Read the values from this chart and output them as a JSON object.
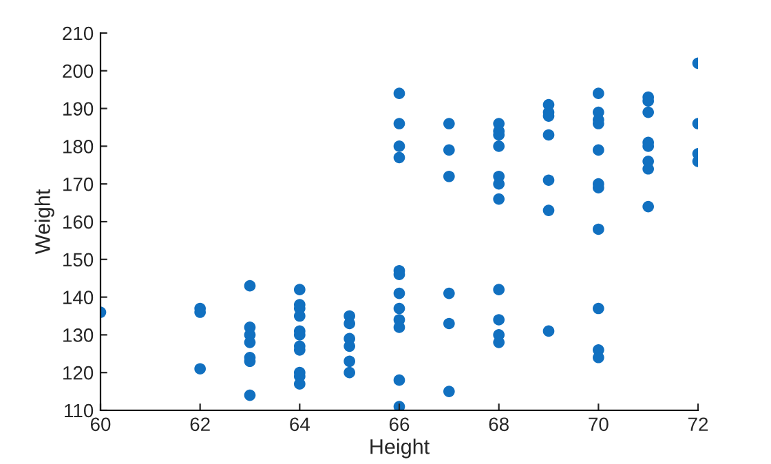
{
  "chart_data": {
    "type": "scatter",
    "xlabel": "Height",
    "ylabel": "Weight",
    "marker": "circle",
    "grid": false,
    "xlim": [
      60,
      72
    ],
    "xticks": [
      60,
      62,
      64,
      66,
      68,
      70,
      72
    ],
    "ylim": [
      110,
      210
    ],
    "yticks": [
      110,
      120,
      130,
      140,
      150,
      160,
      170,
      180,
      190,
      200,
      210
    ],
    "series": [
      {
        "color": "#1170c0",
        "x": [
          60,
          62,
          62,
          62,
          63,
          63,
          63,
          63,
          63,
          63,
          63,
          64,
          64,
          64,
          64,
          64,
          64,
          64,
          64,
          64,
          64,
          64,
          65,
          65,
          65,
          65,
          65,
          65,
          66,
          66,
          66,
          66,
          66,
          66,
          66,
          66,
          66,
          66,
          66,
          66,
          67,
          67,
          67,
          67,
          67,
          67,
          68,
          68,
          68,
          68,
          68,
          68,
          68,
          68,
          68,
          68,
          68,
          69,
          69,
          69,
          69,
          69,
          69,
          69,
          70,
          70,
          70,
          70,
          70,
          70,
          70,
          70,
          70,
          70,
          70,
          71,
          71,
          71,
          71,
          71,
          71,
          71,
          71,
          72,
          72,
          72,
          72
        ],
        "values": [
          136,
          137,
          136,
          121,
          143,
          132,
          130,
          128,
          124,
          123,
          114,
          142,
          138,
          137,
          135,
          131,
          130,
          127,
          126,
          120,
          119,
          117,
          135,
          133,
          129,
          127,
          123,
          120,
          194,
          186,
          180,
          177,
          147,
          146,
          141,
          137,
          134,
          132,
          118,
          111,
          186,
          179,
          172,
          141,
          133,
          115,
          186,
          184,
          183,
          180,
          172,
          170,
          166,
          142,
          134,
          130,
          128,
          191,
          189,
          188,
          183,
          171,
          163,
          131,
          194,
          189,
          187,
          186,
          179,
          170,
          169,
          158,
          137,
          126,
          124,
          193,
          192,
          189,
          181,
          180,
          176,
          174,
          164,
          202,
          186,
          178,
          176
        ]
      }
    ]
  }
}
